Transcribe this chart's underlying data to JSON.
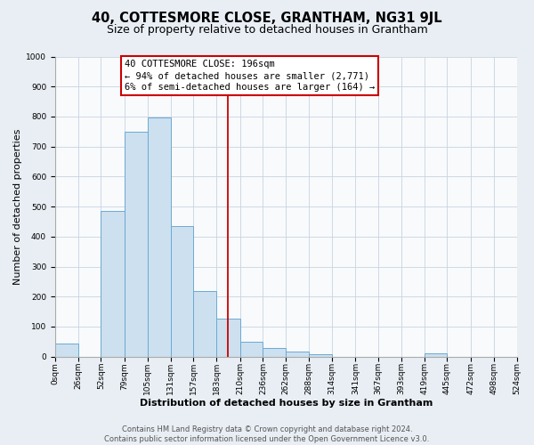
{
  "title": "40, COTTESMORE CLOSE, GRANTHAM, NG31 9JL",
  "subtitle": "Size of property relative to detached houses in Grantham",
  "xlabel": "Distribution of detached houses by size in Grantham",
  "ylabel": "Number of detached properties",
  "bar_edges": [
    0,
    26,
    52,
    79,
    105,
    131,
    157,
    183,
    210,
    236,
    262,
    288,
    314,
    341,
    367,
    393,
    419,
    445,
    472,
    498,
    524
  ],
  "bar_heights": [
    45,
    0,
    485,
    750,
    797,
    435,
    220,
    128,
    50,
    30,
    18,
    8,
    0,
    0,
    0,
    0,
    10,
    0,
    0,
    0
  ],
  "bar_color": "#cce0f0",
  "bar_edge_color": "#6baad0",
  "vline_x": 196,
  "vline_color": "#cc0000",
  "annotation_text_line1": "40 COTTESMORE CLOSE: 196sqm",
  "annotation_text_line2": "← 94% of detached houses are smaller (2,771)",
  "annotation_text_line3": "6% of semi-detached houses are larger (164) →",
  "ylim": [
    0,
    1000
  ],
  "yticks": [
    0,
    100,
    200,
    300,
    400,
    500,
    600,
    700,
    800,
    900,
    1000
  ],
  "xtick_labels": [
    "0sqm",
    "26sqm",
    "52sqm",
    "79sqm",
    "105sqm",
    "131sqm",
    "157sqm",
    "183sqm",
    "210sqm",
    "236sqm",
    "262sqm",
    "288sqm",
    "314sqm",
    "341sqm",
    "367sqm",
    "393sqm",
    "419sqm",
    "445sqm",
    "472sqm",
    "498sqm",
    "524sqm"
  ],
  "footer_line1": "Contains HM Land Registry data © Crown copyright and database right 2024.",
  "footer_line2": "Contains public sector information licensed under the Open Government Licence v3.0.",
  "background_color": "#e8eef4",
  "plot_background_color": "#f8fafc",
  "grid_color": "#c8d4e0",
  "title_fontsize": 10.5,
  "subtitle_fontsize": 9,
  "axis_label_fontsize": 8,
  "tick_fontsize": 6.5,
  "footer_fontsize": 6,
  "annot_fontsize": 7.5
}
